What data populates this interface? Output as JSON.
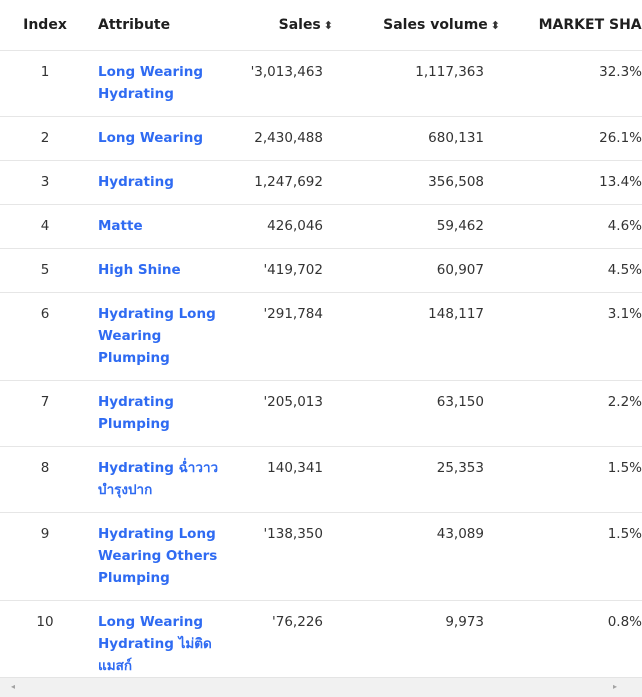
{
  "table": {
    "headers": {
      "index": "Index",
      "attribute": "Attribute",
      "sales": "Sales",
      "sales_volume": "Sales volume",
      "market_share": "MARKET SHARE"
    },
    "sort_icon": "sort-icon",
    "rows": [
      {
        "index": "1",
        "attribute": "Long Wearing Hydrating",
        "sales": "'3,013,463",
        "volume": "1,117,363",
        "share": "32.3%"
      },
      {
        "index": "2",
        "attribute": "Long Wearing",
        "sales": "2,430,488",
        "volume": "680,131",
        "share": "26.1%"
      },
      {
        "index": "3",
        "attribute": "Hydrating",
        "sales": "1,247,692",
        "volume": "356,508",
        "share": "13.4%"
      },
      {
        "index": "4",
        "attribute": "Matte",
        "sales": "426,046",
        "volume": "59,462",
        "share": "4.6%"
      },
      {
        "index": "5",
        "attribute": "High Shine",
        "sales": "'419,702",
        "volume": "60,907",
        "share": "4.5%"
      },
      {
        "index": "6",
        "attribute": "Hydrating Long Wearing Plumping",
        "sales": "'291,784",
        "volume": "148,117",
        "share": "3.1%"
      },
      {
        "index": "7",
        "attribute": "Hydrating Plumping",
        "sales": "'205,013",
        "volume": "63,150",
        "share": "2.2%"
      },
      {
        "index": "8",
        "attribute": "Hydrating ฉ่ำวาว บำรุงปาก",
        "sales": "140,341",
        "volume": "25,353",
        "share": "1.5%"
      },
      {
        "index": "9",
        "attribute": "Hydrating Long Wearing Others Plumping",
        "sales": "'138,350",
        "volume": "43,089",
        "share": "1.5%"
      },
      {
        "index": "10",
        "attribute": "Long Wearing Hydrating ไม่ติดแมสก์",
        "sales": "'76,226",
        "volume": "9,973",
        "share": "0.8%"
      }
    ]
  },
  "scrollbar": {
    "left_icon": "◂",
    "right_icon": "▸"
  }
}
